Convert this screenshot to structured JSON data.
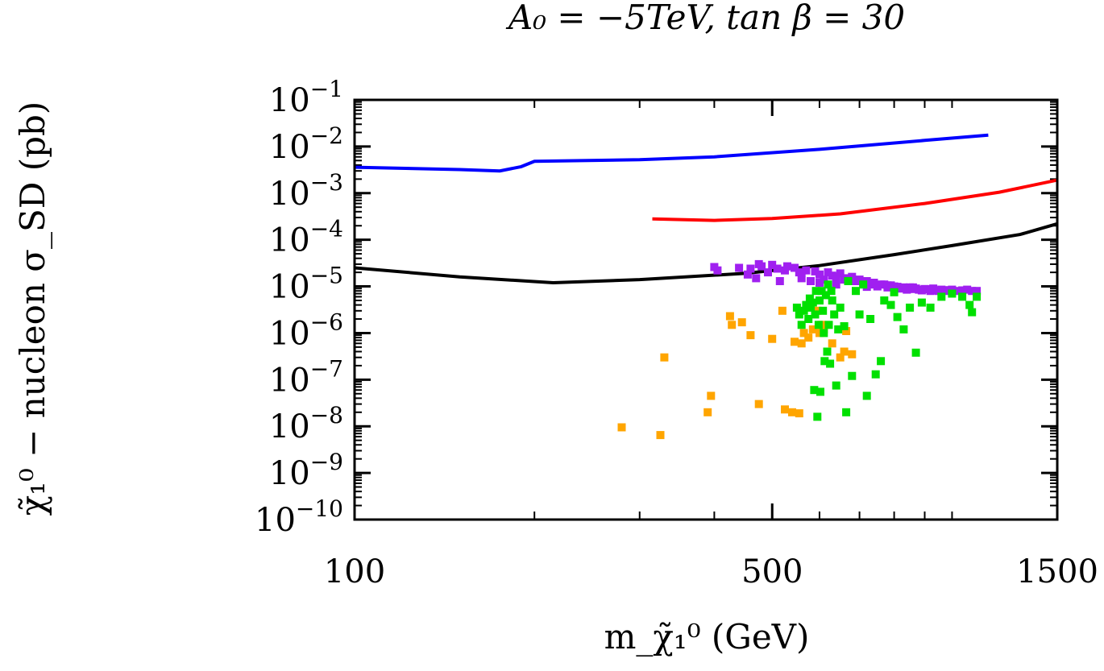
{
  "chart_data": {
    "type": "scatter",
    "title": "A₀ = −5TeV, tan β = 30",
    "xlabel": "m_χ̃₁⁰ (GeV)",
    "ylabel": "χ̃₁⁰ − nucleon σ_SD (pb)",
    "xscale": "log",
    "yscale": "log",
    "xlim": [
      100,
      1500
    ],
    "ylim": [
      1e-10,
      0.1
    ],
    "x_tick_labels": [
      "100",
      "500",
      "1500"
    ],
    "x_ticks": [
      100,
      500,
      1500
    ],
    "y_ticks": [
      {
        "exp": -1,
        "value": 0.1
      },
      {
        "exp": -2,
        "value": 0.01
      },
      {
        "exp": -3,
        "value": 0.001
      },
      {
        "exp": -4,
        "value": 0.0001
      },
      {
        "exp": -5,
        "value": 1e-05
      },
      {
        "exp": -6,
        "value": 1e-06
      },
      {
        "exp": -7,
        "value": 1e-07
      },
      {
        "exp": -8,
        "value": 1e-08
      },
      {
        "exp": -9,
        "value": 1e-09
      },
      {
        "exp": -10,
        "value": 1e-10
      }
    ],
    "lines": [
      {
        "name": "blue-limit",
        "color": "#0000ff",
        "points": [
          [
            100,
            0.0036
          ],
          [
            150,
            0.0032
          ],
          [
            175,
            0.003
          ],
          [
            190,
            0.0037
          ],
          [
            200,
            0.0048
          ],
          [
            300,
            0.0052
          ],
          [
            400,
            0.006
          ],
          [
            600,
            0.0087
          ],
          [
            900,
            0.0135
          ],
          [
            1150,
            0.0175
          ]
        ]
      },
      {
        "name": "red-limit",
        "color": "#ff0000",
        "points": [
          [
            315,
            0.00028
          ],
          [
            400,
            0.00026
          ],
          [
            500,
            0.000285
          ],
          [
            650,
            0.00036
          ],
          [
            900,
            0.0006
          ],
          [
            1200,
            0.00105
          ],
          [
            1500,
            0.0019
          ]
        ]
      },
      {
        "name": "black-limit",
        "color": "#000000",
        "points": [
          [
            100,
            2.5e-05
          ],
          [
            150,
            1.6e-05
          ],
          [
            215,
            1.2e-05
          ],
          [
            300,
            1.4e-05
          ],
          [
            450,
            1.9e-05
          ],
          [
            600,
            2.8e-05
          ],
          [
            800,
            4.8e-05
          ],
          [
            1000,
            7.5e-05
          ],
          [
            1300,
            0.00013
          ],
          [
            1500,
            0.00022
          ]
        ]
      }
    ],
    "series": [
      {
        "name": "purple",
        "color": "#a020f0",
        "points": [
          [
            440,
            2.5e-05
          ],
          [
            455,
            1.8e-05
          ],
          [
            460,
            2.4e-05
          ],
          [
            475,
            3e-05
          ],
          [
            480,
            2.7e-05
          ],
          [
            492,
            2e-05
          ],
          [
            500,
            2.9e-05
          ],
          [
            510,
            2.4e-05
          ],
          [
            515,
            1.3e-05
          ],
          [
            525,
            2.2e-05
          ],
          [
            530,
            2.7e-05
          ],
          [
            545,
            2.5e-05
          ],
          [
            555,
            2e-05
          ],
          [
            560,
            1.5e-05
          ],
          [
            570,
            2.2e-05
          ],
          [
            580,
            1.3e-05
          ],
          [
            590,
            2.1e-05
          ],
          [
            600,
            1.8e-05
          ],
          [
            610,
            1.4e-05
          ],
          [
            620,
            2e-05
          ],
          [
            630,
            1.7e-05
          ],
          [
            640,
            1.6e-05
          ],
          [
            650,
            1.9e-05
          ],
          [
            660,
            1.4e-05
          ],
          [
            670,
            1.5e-05
          ],
          [
            680,
            1.6e-05
          ],
          [
            690,
            1.3e-05
          ],
          [
            700,
            1.4e-05
          ],
          [
            710,
            1.2e-05
          ],
          [
            720,
            1.3e-05
          ],
          [
            730,
            1.1e-05
          ],
          [
            740,
            1.2e-05
          ],
          [
            750,
            1e-05
          ],
          [
            760,
            1.1e-05
          ],
          [
            770,
            1.1e-05
          ],
          [
            780,
            9.5e-06
          ],
          [
            790,
            1.05e-05
          ],
          [
            800,
            1e-05
          ],
          [
            810,
            9.8e-06
          ],
          [
            820,
            9e-06
          ],
          [
            830,
            9.5e-06
          ],
          [
            840,
            8.5e-06
          ],
          [
            850,
            9.5e-06
          ],
          [
            860,
            8.8e-06
          ],
          [
            870,
            9e-06
          ],
          [
            880,
            8.5e-06
          ],
          [
            890,
            8.2e-06
          ],
          [
            900,
            8.8e-06
          ],
          [
            910,
            8.7e-06
          ],
          [
            920,
            8e-06
          ],
          [
            930,
            8.5e-06
          ],
          [
            940,
            8.2e-06
          ],
          [
            950,
            8e-06
          ],
          [
            960,
            8.5e-06
          ],
          [
            970,
            8.2e-06
          ],
          [
            980,
            8e-06
          ],
          [
            990,
            8.3e-06
          ],
          [
            1000,
            8e-06
          ],
          [
            1020,
            8e-06
          ],
          [
            1040,
            8.2e-06
          ],
          [
            1060,
            8.5e-06
          ],
          [
            1080,
            8e-06
          ],
          [
            1100,
            8e-06
          ],
          [
            400,
            2.6e-05
          ],
          [
            405,
            2.2e-05
          ],
          [
            470,
            1.5e-05
          ],
          [
            600,
            1.2e-05
          ],
          [
            640,
            1.1e-05
          ],
          [
            720,
            9.8e-06
          ],
          [
            780,
            1.05e-05
          ],
          [
            860,
            9.5e-06
          ],
          [
            930,
            9e-06
          ],
          [
            1000,
            8.5e-06
          ]
        ]
      },
      {
        "name": "orange",
        "color": "#ffa500",
        "points": [
          [
            280,
            9.5e-09
          ],
          [
            325,
            6.5e-09
          ],
          [
            330,
            3e-07
          ],
          [
            390,
            2e-08
          ],
          [
            395,
            4.5e-08
          ],
          [
            425,
            2.3e-06
          ],
          [
            428,
            1.5e-06
          ],
          [
            445,
            1.7e-06
          ],
          [
            460,
            9e-07
          ],
          [
            475,
            3e-08
          ],
          [
            500,
            7.5e-07
          ],
          [
            520,
            3e-06
          ],
          [
            525,
            2.3e-08
          ],
          [
            540,
            2e-08
          ],
          [
            545,
            6.5e-07
          ],
          [
            555,
            1.9e-08
          ],
          [
            560,
            6e-07
          ],
          [
            565,
            1e-06
          ],
          [
            575,
            8e-07
          ],
          [
            585,
            1.2e-06
          ],
          [
            595,
            3e-06
          ],
          [
            600,
            1e-06
          ],
          [
            605,
            1.5e-06
          ],
          [
            610,
            1.2e-06
          ],
          [
            630,
            6e-07
          ],
          [
            650,
            3e-07
          ],
          [
            660,
            4e-07
          ],
          [
            665,
            1.1e-06
          ],
          [
            680,
            3.5e-07
          ]
        ]
      },
      {
        "name": "green",
        "color": "#00e000",
        "points": [
          [
            550,
            3.5e-06
          ],
          [
            555,
            2.5e-06
          ],
          [
            560,
            1.5e-06
          ],
          [
            565,
            3e-06
          ],
          [
            570,
            4e-06
          ],
          [
            575,
            2e-06
          ],
          [
            578,
            5.5e-06
          ],
          [
            580,
            3.5e-06
          ],
          [
            585,
            4.5e-06
          ],
          [
            588,
            6e-08
          ],
          [
            590,
            2.5e-06
          ],
          [
            592,
            8e-06
          ],
          [
            595,
            1.6e-08
          ],
          [
            598,
            1.5e-06
          ],
          [
            600,
            5e-06
          ],
          [
            602,
            5.5e-08
          ],
          [
            605,
            8e-06
          ],
          [
            608,
            3e-06
          ],
          [
            610,
            1e-06
          ],
          [
            612,
            2.5e-07
          ],
          [
            615,
            6.5e-06
          ],
          [
            618,
            4e-07
          ],
          [
            620,
            1.1e-05
          ],
          [
            622,
            1.5e-06
          ],
          [
            625,
            2.2e-07
          ],
          [
            628,
            8e-06
          ],
          [
            630,
            5e-06
          ],
          [
            635,
            2.5e-06
          ],
          [
            640,
            7.5e-08
          ],
          [
            645,
            1.2e-06
          ],
          [
            650,
            3.5e-06
          ],
          [
            660,
            1.4e-06
          ],
          [
            665,
            2e-08
          ],
          [
            670,
            1.3e-05
          ],
          [
            680,
            1.2e-07
          ],
          [
            690,
            8e-06
          ],
          [
            700,
            2.5e-06
          ],
          [
            710,
            1.1e-05
          ],
          [
            720,
            4.5e-08
          ],
          [
            730,
            2e-06
          ],
          [
            745,
            1.3e-07
          ],
          [
            760,
            2.5e-07
          ],
          [
            770,
            5e-06
          ],
          [
            790,
            4e-06
          ],
          [
            800,
            7.5e-06
          ],
          [
            810,
            2.2e-06
          ],
          [
            830,
            1.2e-06
          ],
          [
            850,
            3.5e-06
          ],
          [
            870,
            3.8e-07
          ],
          [
            890,
            4.5e-06
          ],
          [
            920,
            3.5e-06
          ],
          [
            960,
            6e-06
          ],
          [
            1000,
            7e-06
          ],
          [
            1040,
            6e-06
          ],
          [
            1070,
            4e-06
          ],
          [
            1080,
            2.8e-06
          ],
          [
            1100,
            6e-06
          ]
        ]
      }
    ]
  }
}
